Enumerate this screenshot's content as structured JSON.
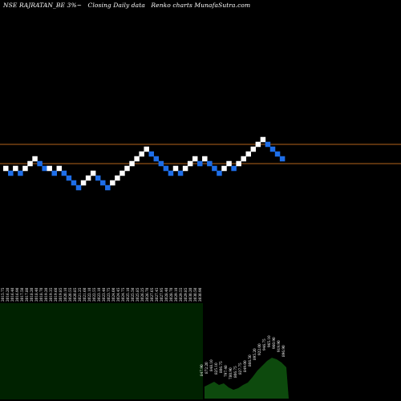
{
  "header": {
    "symbol": "NSE RAJRATAN_BE 3%",
    "symbol_suffix": "~",
    "chart_desc": "Closing Daily data",
    "brand": "Renko  charts MunafaSutra.com"
  },
  "colors": {
    "background": "#000000",
    "up_brick": "#ffffff",
    "down_brick": "#1e6ee8",
    "ref_line": "#b5651d",
    "volume_bg": "#002200",
    "volume_area": "#0d4a0d",
    "label_text": "#ffffff"
  },
  "chart_data": {
    "type": "renko",
    "brick_size_percent": 3,
    "reference_levels": [
      "upper",
      "lower"
    ],
    "bricks": [
      {
        "dir": "up",
        "level": 0
      },
      {
        "dir": "down",
        "level": -1
      },
      {
        "dir": "up",
        "level": 0
      },
      {
        "dir": "down",
        "level": -1
      },
      {
        "dir": "up",
        "level": 0
      },
      {
        "dir": "up",
        "level": 1
      },
      {
        "dir": "up",
        "level": 2
      },
      {
        "dir": "down",
        "level": 1
      },
      {
        "dir": "down",
        "level": 0
      },
      {
        "dir": "up",
        "level": 0
      },
      {
        "dir": "down",
        "level": -1
      },
      {
        "dir": "up",
        "level": 0
      },
      {
        "dir": "down",
        "level": -1
      },
      {
        "dir": "down",
        "level": -2
      },
      {
        "dir": "down",
        "level": -3
      },
      {
        "dir": "down",
        "level": -4
      },
      {
        "dir": "up",
        "level": -3
      },
      {
        "dir": "up",
        "level": -2
      },
      {
        "dir": "up",
        "level": -1
      },
      {
        "dir": "down",
        "level": -2
      },
      {
        "dir": "down",
        "level": -3
      },
      {
        "dir": "down",
        "level": -4
      },
      {
        "dir": "up",
        "level": -3
      },
      {
        "dir": "up",
        "level": -2
      },
      {
        "dir": "up",
        "level": -1
      },
      {
        "dir": "up",
        "level": 0
      },
      {
        "dir": "up",
        "level": 1
      },
      {
        "dir": "up",
        "level": 2
      },
      {
        "dir": "up",
        "level": 3
      },
      {
        "dir": "up",
        "level": 4
      },
      {
        "dir": "down",
        "level": 3
      },
      {
        "dir": "down",
        "level": 2
      },
      {
        "dir": "down",
        "level": 1
      },
      {
        "dir": "down",
        "level": 0
      },
      {
        "dir": "down",
        "level": -1
      },
      {
        "dir": "up",
        "level": 0
      },
      {
        "dir": "down",
        "level": -1
      },
      {
        "dir": "up",
        "level": 0
      },
      {
        "dir": "up",
        "level": 1
      },
      {
        "dir": "up",
        "level": 2
      },
      {
        "dir": "down",
        "level": 1
      },
      {
        "dir": "up",
        "level": 2
      },
      {
        "dir": "down",
        "level": 1
      },
      {
        "dir": "down",
        "level": 0
      },
      {
        "dir": "down",
        "level": -1
      },
      {
        "dir": "up",
        "level": 0
      },
      {
        "dir": "up",
        "level": 1
      },
      {
        "dir": "down",
        "level": 0
      },
      {
        "dir": "up",
        "level": 1
      },
      {
        "dir": "up",
        "level": 2
      },
      {
        "dir": "up",
        "level": 3
      },
      {
        "dir": "up",
        "level": 4
      },
      {
        "dir": "up",
        "level": 5
      },
      {
        "dir": "up",
        "level": 6
      },
      {
        "dir": "down",
        "level": 5
      },
      {
        "dir": "down",
        "level": 4
      },
      {
        "dir": "down",
        "level": 3
      },
      {
        "dir": "down",
        "level": 2
      }
    ],
    "dense_dates": [
      "2015.75",
      "2016.20",
      "2016.40",
      "2016.90",
      "2017.50",
      "2017.80",
      "2018.20",
      "2018.40",
      "2018.70",
      "2019.20",
      "2019.35",
      "2019.60",
      "2019.85",
      "2020.10",
      "2020.55",
      "2020.85",
      "2021.25",
      "2021.60",
      "2022.10",
      "2022.55",
      "2023.10",
      "2023.40",
      "2023.75",
      "2024.00",
      "2024.45",
      "2024.75",
      "2025.10",
      "2025.50",
      "2025.85",
      "2026.25",
      "2026.70",
      "2027.05",
      "2027.45",
      "2027.95",
      "2028.40",
      "2028.70",
      "2029.10",
      "2029.55",
      "2029.85",
      "2030.20",
      "2030.50",
      "2030.90"
    ],
    "recent_prices": [
      "847.90",
      "872.20",
      "848.10",
      "825.10",
      "806.75",
      "797.40",
      "780.90",
      "806.75",
      "827.75",
      "849.00",
      "866.50",
      "895.20",
      "922.00",
      "946.75",
      "965.10",
      "960.90",
      "919.90",
      "896.90"
    ],
    "recent_volume": [
      10,
      13,
      16,
      12,
      14,
      9,
      6,
      8,
      12,
      15,
      22,
      30,
      36,
      42,
      46,
      44,
      40,
      34
    ]
  }
}
